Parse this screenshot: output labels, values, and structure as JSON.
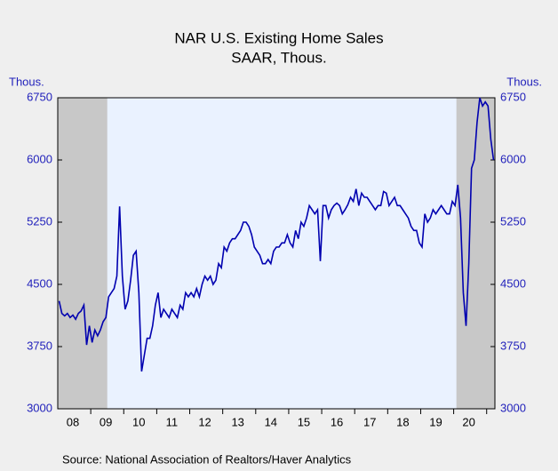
{
  "chart_data": {
    "type": "line",
    "title": "NAR U.S. Existing Home Sales",
    "subtitle": "SAAR, Thous.",
    "y_label": "Thous.",
    "y2_label": "Thous.",
    "source": "Source:  National Association of Realtors/Haver Analytics",
    "categories": [
      null,
      null,
      null,
      null,
      null,
      "08",
      null,
      null,
      null,
      null,
      null,
      null,
      null,
      null,
      null,
      null,
      null,
      "09",
      null,
      null,
      null,
      null,
      null,
      null,
      null,
      null,
      null,
      null,
      null,
      "10",
      null,
      null,
      null,
      null,
      null,
      null,
      null,
      null,
      null,
      null,
      null,
      "11",
      null,
      null,
      null,
      null,
      null,
      null,
      null,
      null,
      null,
      null,
      null,
      "12",
      null,
      null,
      null,
      null,
      null,
      null,
      null,
      null,
      null,
      null,
      null,
      "13",
      null,
      null,
      null,
      null,
      null,
      null,
      null,
      null,
      null,
      null,
      null,
      "14",
      null,
      null,
      null,
      null,
      null,
      null,
      null,
      null,
      null,
      null,
      null,
      "15",
      null,
      null,
      null,
      null,
      null,
      null,
      null,
      null,
      null,
      null,
      null,
      "16",
      null,
      null,
      null,
      null,
      null,
      null,
      null,
      null,
      null,
      null,
      null,
      "17",
      null,
      null,
      null,
      null,
      null,
      null,
      null,
      null,
      null,
      null,
      null,
      "18",
      null,
      null,
      null,
      null,
      null,
      null,
      null,
      null,
      null,
      null,
      null,
      "19",
      null,
      null,
      null,
      null,
      null,
      null,
      null,
      null,
      null,
      null,
      null,
      "20",
      null,
      null,
      null,
      null,
      null,
      null,
      null,
      null,
      null
    ],
    "series": [
      {
        "name": "Existing Home Sales",
        "color": "#0000b0",
        "values": [
          4300,
          4150,
          4120,
          4150,
          4100,
          4130,
          4080,
          4150,
          4180,
          4250,
          3770,
          4000,
          3800,
          3950,
          3880,
          3950,
          4050,
          4100,
          4350,
          4400,
          4450,
          4600,
          5440,
          4600,
          4200,
          4300,
          4550,
          4850,
          4900,
          4400,
          3450,
          3650,
          3850,
          3850,
          4000,
          4250,
          4400,
          4100,
          4200,
          4150,
          4100,
          4200,
          4150,
          4100,
          4250,
          4200,
          4400,
          4350,
          4400,
          4350,
          4450,
          4350,
          4500,
          4600,
          4550,
          4600,
          4500,
          4550,
          4750,
          4700,
          4950,
          4900,
          5000,
          5050,
          5050,
          5100,
          5150,
          5250,
          5250,
          5200,
          5100,
          4950,
          4900,
          4850,
          4750,
          4750,
          4800,
          4750,
          4900,
          4950,
          4950,
          5000,
          5000,
          5100,
          5000,
          4950,
          5150,
          5050,
          5250,
          5200,
          5300,
          5450,
          5400,
          5350,
          5400,
          4780,
          5450,
          5450,
          5300,
          5400,
          5450,
          5480,
          5450,
          5350,
          5400,
          5460,
          5550,
          5500,
          5650,
          5450,
          5600,
          5550,
          5550,
          5500,
          5450,
          5400,
          5450,
          5450,
          5620,
          5600,
          5450,
          5500,
          5550,
          5450,
          5450,
          5400,
          5350,
          5300,
          5200,
          5150,
          5150,
          5000,
          4950,
          5350,
          5250,
          5300,
          5400,
          5350,
          5400,
          5450,
          5400,
          5350,
          5350,
          5500,
          5450,
          5700,
          5300,
          4400,
          4000,
          4750,
          5900,
          6000,
          6450,
          6750,
          6650,
          6700,
          6650,
          6250,
          6000
        ]
      }
    ],
    "ylim": [
      3000,
      6750
    ],
    "yticks": [
      3000,
      3750,
      4500,
      5250,
      6000,
      6750
    ],
    "y2lim": [
      3000,
      6750
    ],
    "y2ticks": [
      3000,
      3750,
      4500,
      5250,
      6000,
      6750
    ]
  }
}
